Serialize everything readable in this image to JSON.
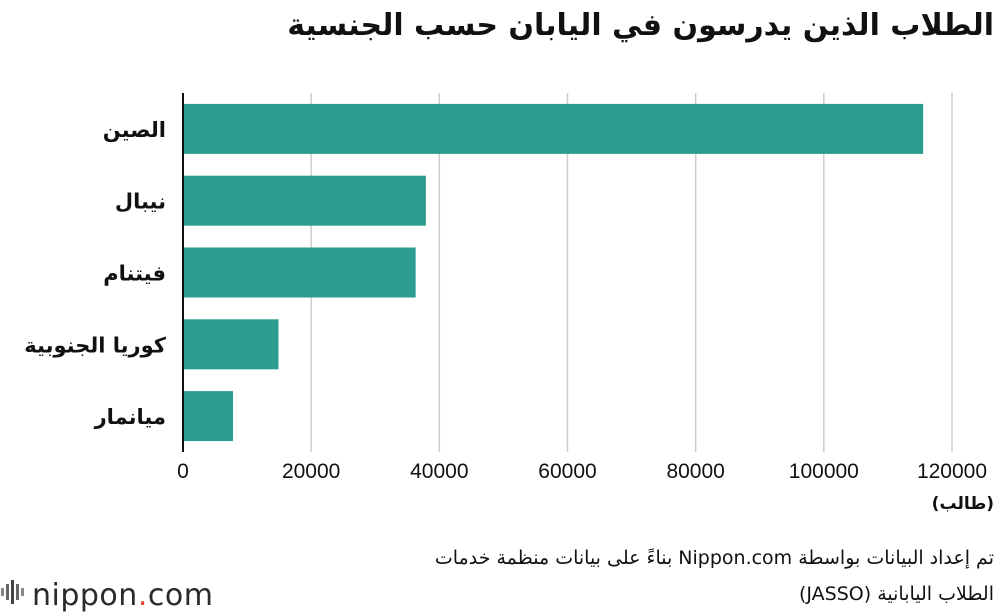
{
  "chart_data": {
    "type": "bar",
    "orientation": "horizontal",
    "title": "الطلاب الذين يدرسون في اليابان حسب الجنسية",
    "categories": [
      "الصين",
      "نيبال",
      "فيتنام",
      "كوريا الجنوبية",
      "ميانمار"
    ],
    "values": [
      115500,
      37900,
      36300,
      14900,
      7800
    ],
    "xlim": [
      0,
      120000
    ],
    "xticks": [
      0,
      20000,
      40000,
      60000,
      80000,
      100000,
      120000
    ],
    "unit_label": "(طالب)",
    "grid": true,
    "bar_color": "#2a9d8f"
  },
  "source": {
    "line1": "تم إعداد البيانات بواسطة Nippon.com بناءً على بيانات منظمة خدمات",
    "line2": "الطلاب اليابانية  (JASSO)"
  },
  "logo": {
    "name_left": "nippon",
    "dot": ".",
    "name_right": "com"
  }
}
